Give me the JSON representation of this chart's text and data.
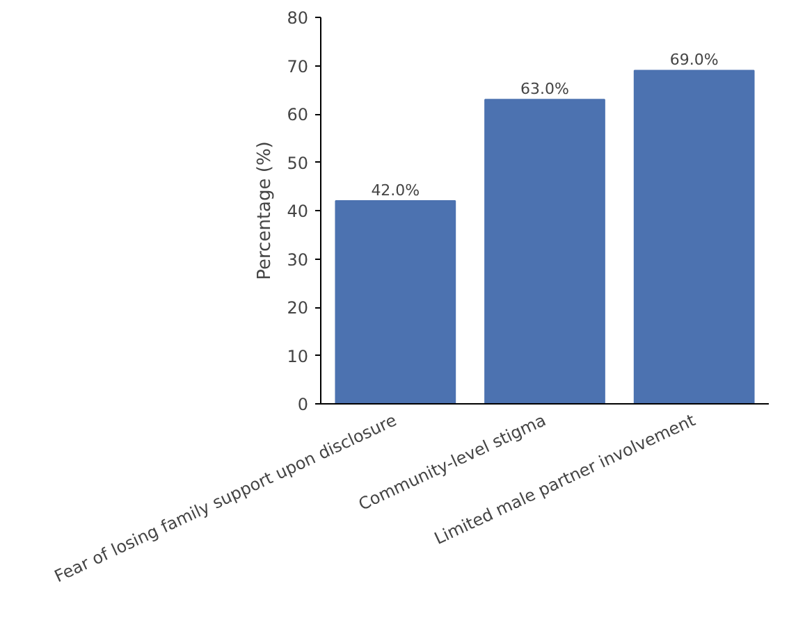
{
  "chart_data": {
    "type": "bar",
    "ylabel": "Percentage (%)",
    "categories": [
      "Fear of losing family support upon disclosure",
      "Community-level stigma",
      "Limited male partner involvement"
    ],
    "values": [
      42.0,
      63.0,
      69.0
    ],
    "color": "#4c72b0",
    "value_labels": [
      "42.0%",
      "63.0%",
      "69.0%"
    ],
    "ylim": [
      0,
      80
    ],
    "yticks": [
      0,
      10,
      20,
      30,
      40,
      50,
      60,
      70,
      80
    ],
    "grid": false
  }
}
